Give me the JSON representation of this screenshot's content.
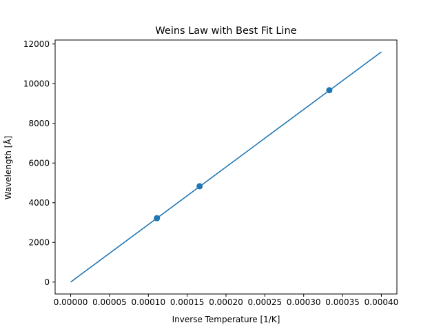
{
  "chart_data": {
    "type": "line",
    "title": "Weins Law with Best Fit Line",
    "xlabel": "Inverse Temperature [1/K]",
    "ylabel": "Wavelength [Å]",
    "xlim": [
      -2e-05,
      0.00042
    ],
    "ylim": [
      -600,
      12200
    ],
    "x_ticks": [
      0.0,
      5e-05,
      0.0001,
      0.00015,
      0.0002,
      0.00025,
      0.0003,
      0.00035,
      0.0004
    ],
    "x_tick_labels": [
      "0.00000",
      "0.00005",
      "0.00010",
      "0.00015",
      "0.00020",
      "0.00025",
      "0.00030",
      "0.00035",
      "0.00040"
    ],
    "y_ticks": [
      0,
      2000,
      4000,
      6000,
      8000,
      10000,
      12000
    ],
    "y_tick_labels": [
      "0",
      "2000",
      "4000",
      "6000",
      "8000",
      "10000",
      "12000"
    ],
    "grid": false,
    "series": [
      {
        "kind": "scatter",
        "color": "#1f77b4",
        "x": [
          0.000111,
          0.000166,
          0.000333
        ],
        "y": [
          3220,
          4830,
          9670
        ]
      },
      {
        "kind": "line",
        "color": "#1f77b4",
        "x": [
          0.0,
          0.0004
        ],
        "y": [
          0,
          11600
        ]
      }
    ]
  }
}
